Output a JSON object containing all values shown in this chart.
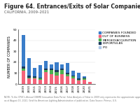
{
  "title": "Figure 64. Entrances/Exits of Solar Companies",
  "subtitle": "CALIFORNIA, 2009–2021",
  "years": [
    "2009",
    "2010",
    "2011",
    "2012",
    "2013",
    "2014",
    "2015",
    "2016",
    "2017",
    "2018",
    "2019",
    "2020",
    "2021"
  ],
  "companies_founded": [
    45,
    24,
    15,
    17,
    21,
    18,
    20,
    18,
    19,
    12,
    10,
    7,
    2
  ],
  "out_of_business": [
    12,
    5,
    5,
    4,
    11,
    9,
    8,
    9,
    7,
    5,
    3,
    4,
    2
  ],
  "merged_acquisition": [
    2,
    1,
    1,
    1,
    2,
    4,
    3,
    4,
    2,
    2,
    1,
    1,
    0
  ],
  "exports_lbs": [
    2,
    2,
    1,
    1,
    1,
    1,
    2,
    1,
    1,
    1,
    1,
    1,
    0
  ],
  "ipo": [
    0,
    0,
    0,
    0,
    0,
    0,
    0,
    0,
    0,
    0,
    0,
    0,
    0
  ],
  "colors": {
    "companies_founded": "#3A7DC9",
    "out_of_business": "#F4637A",
    "merged_acquisition": "#4CAF50",
    "exports_lbs": "#1A3A5C",
    "ipo": "#AEC7E8"
  },
  "legend_labels": [
    "COMPANIES FOUNDED",
    "OUT OF BUSINESS",
    "MERGED/ACQUISITION",
    "EXPORTS/LBS",
    "IPO"
  ],
  "legend_colors": [
    "#3A7DC9",
    "#F4637A",
    "#4CAF50",
    "#1A3A5C",
    "#AEC7E8"
  ],
  "ylabel": "NUMBER OF COMPANIES",
  "ylim": [
    0,
    50
  ],
  "yticks": [
    0,
    10,
    20,
    30,
    40,
    50
  ],
  "background_color": "#FFFFFF",
  "title_fontsize": 5.5,
  "subtitle_fontsize": 3.8,
  "axis_fontsize": 3.5,
  "tick_fontsize": 3.2,
  "legend_fontsize": 3.2,
  "footnote_fontsize": 2.2
}
